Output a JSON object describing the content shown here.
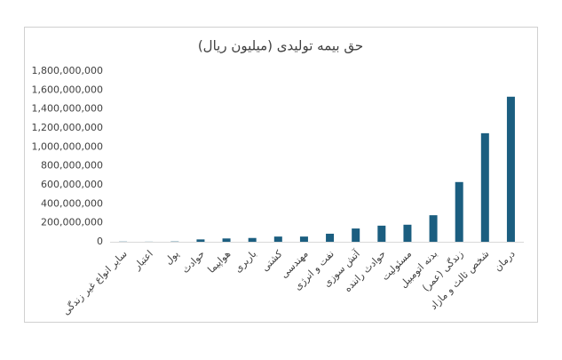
{
  "chart_data": {
    "type": "bar",
    "title": "حق بیمه تولیدی (میلیون ریال)",
    "categories": [
      "سایر انواع غیر زندگی",
      "اعتبار",
      "پول",
      "حوادث",
      "هواپیما",
      "باربری",
      "کشتی",
      "مهندسی",
      "نفت و انرژی",
      "آتش سوزی",
      "حوادث راننده",
      "مسئولیت",
      "بدنه اتومبیل",
      "زندگی (عمر)",
      "شخص ثالث و مازاد",
      "درمان"
    ],
    "values": [
      2000000,
      1000000,
      3000000,
      25000000,
      35000000,
      40000000,
      55000000,
      55000000,
      85000000,
      140000000,
      170000000,
      180000000,
      280000000,
      630000000,
      1145000000,
      1530000000
    ],
    "color": "#1b5e80",
    "ylim": [
      0,
      1800000000
    ],
    "yticks": [
      {
        "value": 0,
        "label": "0"
      },
      {
        "value": 200000000,
        "label": "200,000,000"
      },
      {
        "value": 400000000,
        "label": "400,000,000"
      },
      {
        "value": 600000000,
        "label": "600,000,000"
      },
      {
        "value": 800000000,
        "label": "800,000,000"
      },
      {
        "value": 1000000000,
        "label": "1,000,000,000"
      },
      {
        "value": 1200000000,
        "label": "1,200,000,000"
      },
      {
        "value": 1400000000,
        "label": "1,400,000,000"
      },
      {
        "value": 1600000000,
        "label": "1,600,000,000"
      },
      {
        "value": 1800000000,
        "label": "1,800,000,000"
      }
    ],
    "grid": false
  }
}
